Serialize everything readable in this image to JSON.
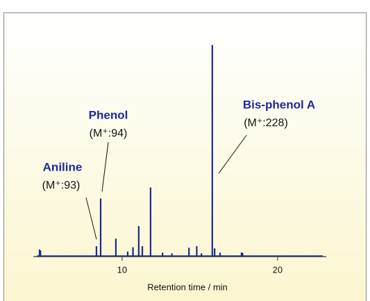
{
  "chart_data": {
    "type": "stem",
    "x_label": "Retention time  / min",
    "color": "#1e2a8c",
    "x": [
      4.69,
      4.75,
      8.35,
      8.62,
      9.6,
      10.36,
      10.7,
      11.07,
      11.3,
      11.83,
      12.6,
      13.2,
      14.3,
      14.8,
      15.1,
      15.8,
      15.95,
      16.3,
      17.68,
      17.75
    ],
    "values": [
      3,
      2.5,
      4.5,
      26.6,
      8,
      2,
      4,
      13.8,
      4.5,
      31.7,
      1.5,
      1.2,
      3.8,
      4.5,
      1.2,
      97.8,
      3.5,
      1.5,
      1.6,
      1.4
    ],
    "xlim": [
      4.29,
      23.13
    ],
    "ylim": [
      0,
      100
    ],
    "xticks": [
      10,
      20
    ],
    "annotations": [
      {
        "title": "Aniline",
        "text": "(M⁺:93)"
      },
      {
        "title": "Phenol",
        "text": "(M⁺:94)"
      },
      {
        "title": "Bis-phenol A",
        "text": "(M⁺:228)"
      }
    ]
  }
}
